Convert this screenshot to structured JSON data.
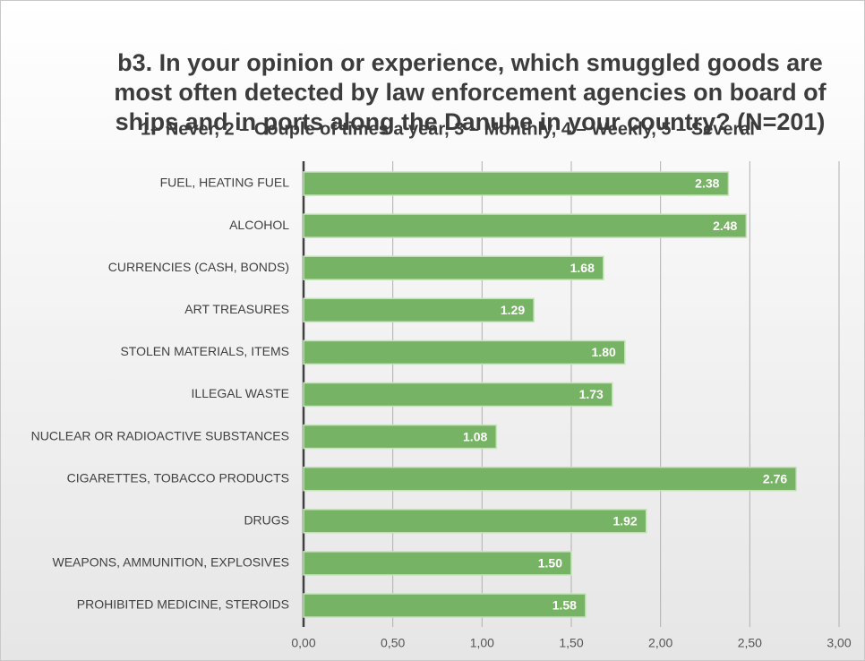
{
  "chart_data": {
    "type": "bar",
    "orientation": "horizontal",
    "title": [
      "b3. In your opinion or experience, which smuggled goods are",
      "most often detected by law enforcement agencies on board of",
      "ships and in ports along the Danube in your country?   (N=201)"
    ],
    "subtitle": "1– Never, 2 – Couple of times a year, 3 – Monthly, 4 – Weekly, 5 – Several",
    "categories": [
      "FUEL, HEATING FUEL",
      "ALCOHOL",
      "CURRENCIES (CASH, BONDS)",
      "ART TREASURES",
      "STOLEN MATERIALS, ITEMS",
      "ILLEGAL WASTE",
      "NUCLEAR OR RADIOACTIVE SUBSTANCES",
      "CIGARETTES, TOBACCO PRODUCTS",
      "DRUGS",
      "WEAPONS, AMMUNITION, EXPLOSIVES",
      "PROHIBITED MEDICINE, STEROIDS"
    ],
    "values": [
      2.38,
      2.48,
      1.68,
      1.29,
      1.8,
      1.73,
      1.08,
      2.76,
      1.92,
      1.5,
      1.58
    ],
    "value_labels": [
      "2.38",
      "2.48",
      "1.68",
      "1.29",
      "1.80",
      "1.73",
      "1.08",
      "2.76",
      "1.92",
      "1.50",
      "1.58"
    ],
    "color": "#77b364",
    "xlim": [
      0,
      3
    ],
    "xticks": [
      {
        "value": 0,
        "label": "0,00"
      },
      {
        "value": 0.5,
        "label": "0,50"
      },
      {
        "value": 1,
        "label": "1,00"
      },
      {
        "value": 1.5,
        "label": "1,50"
      },
      {
        "value": 2,
        "label": "2,00"
      },
      {
        "value": 2.5,
        "label": "2,50"
      },
      {
        "value": 3,
        "label": "3,00"
      }
    ],
    "grid": true
  }
}
